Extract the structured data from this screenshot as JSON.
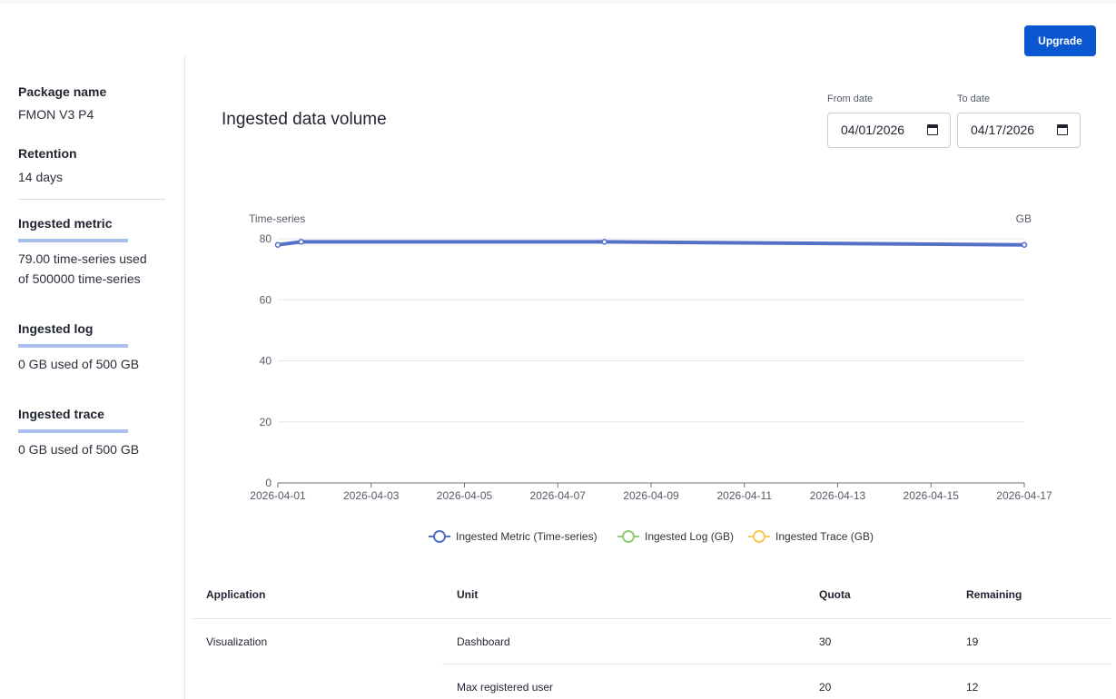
{
  "header": {
    "upgrade_label": "Upgrade"
  },
  "sidebar": {
    "package_label": "Package name",
    "package_value": "FMON V3 P4",
    "retention_label": "Retention",
    "retention_value": "14 days",
    "metric_label": "Ingested metric",
    "metric_value_line1": "79.00 time-series used",
    "metric_value_line2": "of 500000 time-series",
    "log_label": "Ingested log",
    "log_value": "0 GB used of 500 GB",
    "trace_label": "Ingested trace",
    "trace_value": "0 GB used of 500 GB"
  },
  "filters": {
    "from_label": "From date",
    "from_value": "04/01/2026",
    "to_label": "To date",
    "to_value": "04/17/2026"
  },
  "chart_title": "Ingested data volume",
  "chart_data": {
    "type": "line",
    "y_left_label": "Time-series",
    "y_right_label": "GB",
    "ylim": [
      0,
      80
    ],
    "y_ticks": [
      "80",
      "60",
      "40",
      "20",
      "0"
    ],
    "x_tick_labels": [
      "2026-04-01",
      "2026-04-03",
      "2026-04-05",
      "2026-04-07",
      "2026-04-09",
      "2026-04-11",
      "2026-04-13",
      "2026-04-15",
      "2026-04-17"
    ],
    "x_range": [
      "2026-04-01",
      "2026-04-17"
    ],
    "grid": true,
    "legend_position": "bottom",
    "series": [
      {
        "name": "Ingested Metric (Time-series)",
        "color": "#5470c6",
        "points": [
          [
            "2026-04-01",
            78
          ],
          [
            "2026-04-01T12:00",
            79
          ],
          [
            "2026-04-08T00:00",
            79
          ],
          [
            "2026-04-17",
            78
          ]
        ]
      },
      {
        "name": "Ingested Log (GB)",
        "color": "#91cc75",
        "points": []
      },
      {
        "name": "Ingested Trace (GB)",
        "color": "#fac858",
        "points": []
      }
    ]
  },
  "table": {
    "headers": [
      "Application",
      "Unit",
      "Quota",
      "Remaining"
    ],
    "rows": [
      {
        "application": "Visualization",
        "unit": "Dashboard",
        "quota": "30",
        "remaining": "19"
      },
      {
        "application": "",
        "unit": "Max registered user",
        "quota": "20",
        "remaining": "12"
      }
    ]
  }
}
